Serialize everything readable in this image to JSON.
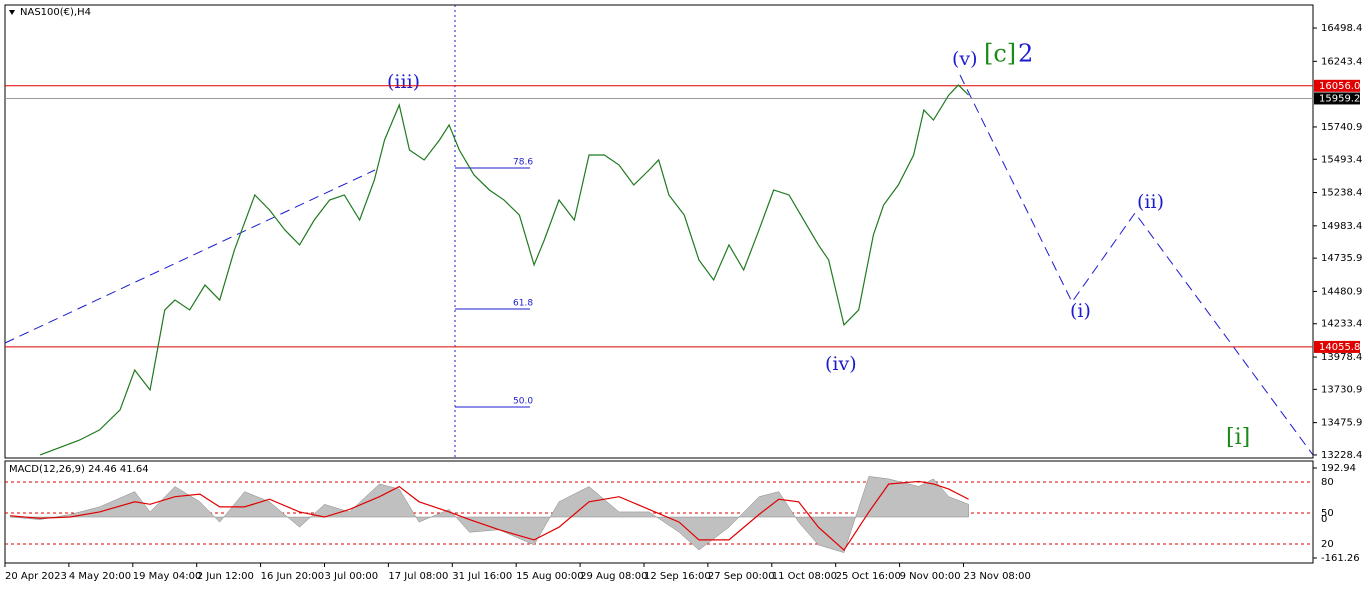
{
  "chart_data": [
    {
      "type": "line",
      "title": "NAS100(€),H4",
      "x": [
        0.55,
        1.17,
        1.48,
        1.8,
        2.03,
        2.27,
        2.5,
        2.66,
        2.89,
        3.13,
        3.36,
        3.59,
        3.91,
        4.14,
        4.38,
        4.61,
        4.84,
        5.08,
        5.31,
        5.55,
        5.78,
        5.94,
        6.17,
        6.33,
        6.56,
        6.8,
        6.95,
        7.11,
        7.34,
        7.58,
        7.81,
        8.05,
        8.28,
        8.44,
        8.67,
        8.91,
        9.14,
        9.38,
        9.61,
        9.84,
        10.08,
        10.23,
        10.39,
        10.63,
        10.86,
        11.09,
        11.33,
        11.56,
        11.8,
        12.03,
        12.27,
        12.5,
        12.73,
        12.89,
        13.13,
        13.36,
        13.59,
        13.75,
        13.98,
        14.22,
        14.38,
        14.53,
        14.77,
        14.92,
        15.08
      ],
      "series": [
        {
          "color": "#1f7a1f",
          "values": [
            13228,
            13343,
            13420,
            13573,
            13879,
            13726,
            14339,
            14415,
            14339,
            14530,
            14415,
            14798,
            15220,
            15105,
            14952,
            14837,
            15028,
            15181,
            15220,
            15028,
            15334,
            15641,
            15909,
            15564,
            15488,
            15641,
            15756,
            15564,
            15373,
            15258,
            15181,
            15066,
            14684,
            14875,
            15181,
            15028,
            15526,
            15526,
            15449,
            15296,
            15411,
            15488,
            15220,
            15066,
            14722,
            14569,
            14837,
            14645,
            14952,
            15258,
            15220,
            15028,
            14837,
            14722,
            14224,
            14339,
            14913,
            15143,
            15296,
            15526,
            15871,
            15794,
            15985,
            16062,
            15985
          ]
        }
      ],
      "xlim": [
        0,
        20.47
      ],
      "xticks": [
        {
          "value": 0,
          "label": "20 Apr 2023"
        },
        {
          "value": 1,
          "label": "4 May 20:00"
        },
        {
          "value": 2,
          "label": "19 May 04:00"
        },
        {
          "value": 3,
          "label": "2 Jun 12:00"
        },
        {
          "value": 4,
          "label": "16 Jun 20:00"
        },
        {
          "value": 5,
          "label": "3 Jul 00:00"
        },
        {
          "value": 6,
          "label": "17 Jul 08:00"
        },
        {
          "value": 7,
          "label": "31 Jul 16:00"
        },
        {
          "value": 8,
          "label": "15 Aug 00:00"
        },
        {
          "value": 9,
          "label": "29 Aug 08:00"
        },
        {
          "value": 10,
          "label": "12 Sep 16:00"
        },
        {
          "value": 11,
          "label": "27 Sep 00:00"
        },
        {
          "value": 12,
          "label": "11 Oct 08:00"
        },
        {
          "value": 13,
          "label": "25 Oct 16:00"
        },
        {
          "value": 14,
          "label": "9 Nov 00:00"
        },
        {
          "value": 15,
          "label": "23 Nov 08:00"
        }
      ],
      "ylim": [
        13205,
        16675
      ],
      "yticks": [
        16498.4,
        16243.4,
        15740.9,
        15493.4,
        15238.4,
        14983.4,
        14735.9,
        14480.9,
        14233.4,
        13978.4,
        13730.9,
        13475.9,
        13228.4
      ],
      "price_lines": [
        {
          "value": 16056,
          "label": "16056.0",
          "color": "#e00000"
        },
        {
          "value": 15959.2,
          "color": "#999999"
        },
        {
          "value": 14055.8,
          "color": "#e00000"
        }
      ],
      "annotations": [
        "(iii)",
        "(iv)",
        "(v)",
        "[c]",
        "2",
        "(i)",
        "(ii)",
        "[i]",
        "78.6",
        "61.8",
        "50.0"
      ]
    },
    {
      "type": "area",
      "title": "MACD(12,26,9) 24.46 41.64",
      "x": [
        0.08,
        0.55,
        1.02,
        1.48,
        2.03,
        2.27,
        2.66,
        3.05,
        3.36,
        3.75,
        4.14,
        4.61,
        5.0,
        5.39,
        5.86,
        6.17,
        6.48,
        6.95,
        7.27,
        7.73,
        8.28,
        8.67,
        9.14,
        9.61,
        10.08,
        10.55,
        10.86,
        11.33,
        11.8,
        12.11,
        12.42,
        12.73,
        13.13,
        13.52,
        13.83,
        14.3,
        14.53,
        14.77,
        15.08
      ],
      "series": [
        {
          "color": "#c0c0c0",
          "values": [
            0,
            -10,
            10,
            40,
            100,
            20,
            120,
            60,
            -20,
            100,
            60,
            -40,
            50,
            20,
            130,
            110,
            -20,
            30,
            -60,
            -50,
            -110,
            60,
            120,
            20,
            20,
            -60,
            -130,
            -40,
            80,
            100,
            -20,
            -110,
            -140,
            160,
            150,
            120,
            150,
            80,
            50
          ]
        },
        {
          "color": "#e00000",
          "values": [
            5,
            -5,
            0,
            20,
            60,
            50,
            80,
            90,
            40,
            40,
            70,
            20,
            0,
            30,
            80,
            120,
            60,
            20,
            -10,
            -50,
            -90,
            -40,
            60,
            80,
            30,
            -20,
            -90,
            -90,
            10,
            70,
            60,
            -40,
            -130,
            20,
            130,
            140,
            130,
            110,
            70
          ]
        }
      ],
      "ylim": [
        -161.26,
        192.94
      ],
      "yticks": [
        192.94,
        -161.26
      ],
      "levels": [
        80,
        50,
        0,
        20
      ]
    }
  ]
}
